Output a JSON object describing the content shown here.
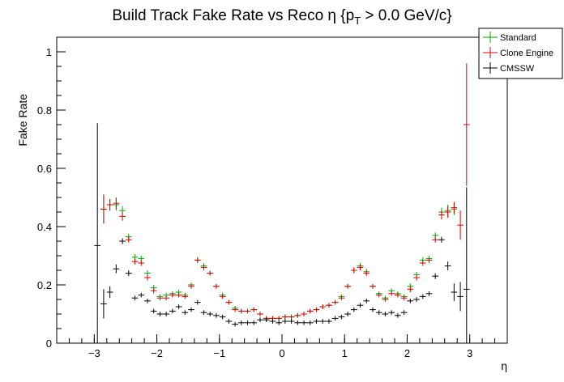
{
  "chart_data": {
    "type": "scatter",
    "title_main": "Build Track Fake Rate vs Reco η {p",
    "title_sub": "T",
    "title_tail": " > 0.0 GeV/c}",
    "xlabel": "η",
    "ylabel": "Fake Rate",
    "xlim": [
      -3.6,
      3.6
    ],
    "ylim": [
      0,
      1.05
    ],
    "x_ticks": [
      -3,
      -2,
      -1,
      0,
      1,
      2,
      3
    ],
    "x_tick_labels": [
      "−3",
      "−2",
      "−1",
      "0",
      "1",
      "2",
      "3"
    ],
    "y_ticks": [
      0,
      0.2,
      0.4,
      0.6,
      0.8,
      1
    ],
    "y_tick_labels": [
      "0",
      "0.2",
      "0.4",
      "0.6",
      "0.8",
      "1"
    ],
    "legend_position": "top-right",
    "series": [
      {
        "name": "Standard",
        "color": "#00aa00",
        "points": [
          {
            "x": -2.85,
            "y": 0.46,
            "e": 0.05
          },
          {
            "x": -2.75,
            "y": 0.475,
            "e": 0.02
          },
          {
            "x": -2.65,
            "y": 0.475,
            "e": 0.02
          },
          {
            "x": -2.55,
            "y": 0.455,
            "e": 0.015
          },
          {
            "x": -2.45,
            "y": 0.365,
            "e": 0.01
          },
          {
            "x": -2.35,
            "y": 0.295,
            "e": 0.01
          },
          {
            "x": -2.25,
            "y": 0.29,
            "e": 0.01
          },
          {
            "x": -2.15,
            "y": 0.24,
            "e": 0.01
          },
          {
            "x": -2.05,
            "y": 0.19,
            "e": 0.01
          },
          {
            "x": -1.95,
            "y": 0.16,
            "e": 0.008
          },
          {
            "x": -1.85,
            "y": 0.165,
            "e": 0.008
          },
          {
            "x": -1.75,
            "y": 0.17,
            "e": 0.008
          },
          {
            "x": -1.65,
            "y": 0.175,
            "e": 0.008
          },
          {
            "x": -1.55,
            "y": 0.165,
            "e": 0.008
          },
          {
            "x": -1.45,
            "y": 0.2,
            "e": 0.008
          },
          {
            "x": -1.35,
            "y": 0.285,
            "e": 0.01
          },
          {
            "x": -1.25,
            "y": 0.265,
            "e": 0.01
          },
          {
            "x": -1.15,
            "y": 0.24,
            "e": 0.008
          },
          {
            "x": -1.05,
            "y": 0.195,
            "e": 0.008
          },
          {
            "x": -0.95,
            "y": 0.165,
            "e": 0.008
          },
          {
            "x": -0.85,
            "y": 0.14,
            "e": 0.008
          },
          {
            "x": -0.75,
            "y": 0.12,
            "e": 0.008
          },
          {
            "x": -0.65,
            "y": 0.11,
            "e": 0.008
          },
          {
            "x": -0.55,
            "y": 0.11,
            "e": 0.008
          },
          {
            "x": -0.45,
            "y": 0.115,
            "e": 0.008
          },
          {
            "x": -0.35,
            "y": 0.1,
            "e": 0.008
          },
          {
            "x": -0.25,
            "y": 0.085,
            "e": 0.008
          },
          {
            "x": -0.15,
            "y": 0.085,
            "e": 0.008
          },
          {
            "x": -0.05,
            "y": 0.085,
            "e": 0.008
          },
          {
            "x": 0.05,
            "y": 0.09,
            "e": 0.008
          },
          {
            "x": 0.15,
            "y": 0.09,
            "e": 0.008
          },
          {
            "x": 0.25,
            "y": 0.095,
            "e": 0.008
          },
          {
            "x": 0.35,
            "y": 0.1,
            "e": 0.008
          },
          {
            "x": 0.45,
            "y": 0.11,
            "e": 0.008
          },
          {
            "x": 0.55,
            "y": 0.115,
            "e": 0.008
          },
          {
            "x": 0.65,
            "y": 0.125,
            "e": 0.008
          },
          {
            "x": 0.75,
            "y": 0.13,
            "e": 0.008
          },
          {
            "x": 0.85,
            "y": 0.14,
            "e": 0.008
          },
          {
            "x": 0.95,
            "y": 0.16,
            "e": 0.008
          },
          {
            "x": 1.05,
            "y": 0.195,
            "e": 0.008
          },
          {
            "x": 1.15,
            "y": 0.25,
            "e": 0.01
          },
          {
            "x": 1.25,
            "y": 0.265,
            "e": 0.01
          },
          {
            "x": 1.35,
            "y": 0.245,
            "e": 0.01
          },
          {
            "x": 1.45,
            "y": 0.195,
            "e": 0.008
          },
          {
            "x": 1.55,
            "y": 0.17,
            "e": 0.008
          },
          {
            "x": 1.65,
            "y": 0.155,
            "e": 0.008
          },
          {
            "x": 1.75,
            "y": 0.18,
            "e": 0.008
          },
          {
            "x": 1.85,
            "y": 0.17,
            "e": 0.008
          },
          {
            "x": 1.95,
            "y": 0.16,
            "e": 0.008
          },
          {
            "x": 2.05,
            "y": 0.195,
            "e": 0.01
          },
          {
            "x": 2.15,
            "y": 0.235,
            "e": 0.01
          },
          {
            "x": 2.25,
            "y": 0.285,
            "e": 0.01
          },
          {
            "x": 2.35,
            "y": 0.29,
            "e": 0.01
          },
          {
            "x": 2.45,
            "y": 0.37,
            "e": 0.01
          },
          {
            "x": 2.55,
            "y": 0.45,
            "e": 0.015
          },
          {
            "x": 2.65,
            "y": 0.455,
            "e": 0.02
          },
          {
            "x": 2.75,
            "y": 0.46,
            "e": 0.02
          }
        ]
      },
      {
        "name": "Clone Engine",
        "color": "#dd0000",
        "points": [
          {
            "x": -2.85,
            "y": 0.46,
            "e": 0.05
          },
          {
            "x": -2.75,
            "y": 0.475,
            "e": 0.02
          },
          {
            "x": -2.65,
            "y": 0.48,
            "e": 0.02
          },
          {
            "x": -2.55,
            "y": 0.435,
            "e": 0.015
          },
          {
            "x": -2.45,
            "y": 0.355,
            "e": 0.01
          },
          {
            "x": -2.35,
            "y": 0.28,
            "e": 0.01
          },
          {
            "x": -2.25,
            "y": 0.275,
            "e": 0.01
          },
          {
            "x": -2.15,
            "y": 0.225,
            "e": 0.01
          },
          {
            "x": -2.05,
            "y": 0.18,
            "e": 0.01
          },
          {
            "x": -1.95,
            "y": 0.155,
            "e": 0.008
          },
          {
            "x": -1.85,
            "y": 0.155,
            "e": 0.008
          },
          {
            "x": -1.75,
            "y": 0.165,
            "e": 0.008
          },
          {
            "x": -1.65,
            "y": 0.165,
            "e": 0.008
          },
          {
            "x": -1.55,
            "y": 0.16,
            "e": 0.008
          },
          {
            "x": -1.45,
            "y": 0.195,
            "e": 0.008
          },
          {
            "x": -1.35,
            "y": 0.285,
            "e": 0.01
          },
          {
            "x": -1.25,
            "y": 0.26,
            "e": 0.01
          },
          {
            "x": -1.15,
            "y": 0.24,
            "e": 0.008
          },
          {
            "x": -1.05,
            "y": 0.195,
            "e": 0.008
          },
          {
            "x": -0.95,
            "y": 0.16,
            "e": 0.008
          },
          {
            "x": -0.85,
            "y": 0.14,
            "e": 0.008
          },
          {
            "x": -0.75,
            "y": 0.115,
            "e": 0.008
          },
          {
            "x": -0.65,
            "y": 0.11,
            "e": 0.008
          },
          {
            "x": -0.55,
            "y": 0.11,
            "e": 0.008
          },
          {
            "x": -0.45,
            "y": 0.115,
            "e": 0.008
          },
          {
            "x": -0.35,
            "y": 0.1,
            "e": 0.008
          },
          {
            "x": -0.25,
            "y": 0.085,
            "e": 0.008
          },
          {
            "x": -0.15,
            "y": 0.085,
            "e": 0.008
          },
          {
            "x": -0.05,
            "y": 0.085,
            "e": 0.008
          },
          {
            "x": 0.05,
            "y": 0.09,
            "e": 0.008
          },
          {
            "x": 0.15,
            "y": 0.09,
            "e": 0.008
          },
          {
            "x": 0.25,
            "y": 0.095,
            "e": 0.008
          },
          {
            "x": 0.35,
            "y": 0.1,
            "e": 0.008
          },
          {
            "x": 0.45,
            "y": 0.11,
            "e": 0.008
          },
          {
            "x": 0.55,
            "y": 0.115,
            "e": 0.008
          },
          {
            "x": 0.65,
            "y": 0.125,
            "e": 0.008
          },
          {
            "x": 0.75,
            "y": 0.13,
            "e": 0.008
          },
          {
            "x": 0.85,
            "y": 0.14,
            "e": 0.008
          },
          {
            "x": 0.95,
            "y": 0.155,
            "e": 0.008
          },
          {
            "x": 1.05,
            "y": 0.195,
            "e": 0.008
          },
          {
            "x": 1.15,
            "y": 0.25,
            "e": 0.01
          },
          {
            "x": 1.25,
            "y": 0.26,
            "e": 0.01
          },
          {
            "x": 1.35,
            "y": 0.24,
            "e": 0.01
          },
          {
            "x": 1.45,
            "y": 0.195,
            "e": 0.008
          },
          {
            "x": 1.55,
            "y": 0.165,
            "e": 0.008
          },
          {
            "x": 1.65,
            "y": 0.15,
            "e": 0.008
          },
          {
            "x": 1.75,
            "y": 0.17,
            "e": 0.008
          },
          {
            "x": 1.85,
            "y": 0.165,
            "e": 0.008
          },
          {
            "x": 1.95,
            "y": 0.155,
            "e": 0.008
          },
          {
            "x": 2.05,
            "y": 0.185,
            "e": 0.01
          },
          {
            "x": 2.15,
            "y": 0.225,
            "e": 0.01
          },
          {
            "x": 2.25,
            "y": 0.275,
            "e": 0.01
          },
          {
            "x": 2.35,
            "y": 0.285,
            "e": 0.01
          },
          {
            "x": 2.45,
            "y": 0.355,
            "e": 0.01
          },
          {
            "x": 2.55,
            "y": 0.44,
            "e": 0.015
          },
          {
            "x": 2.65,
            "y": 0.45,
            "e": 0.02
          },
          {
            "x": 2.75,
            "y": 0.465,
            "e": 0.02
          },
          {
            "x": 2.85,
            "y": 0.405,
            "e": 0.05
          },
          {
            "x": 2.95,
            "y": 0.75,
            "e": 0.21
          }
        ]
      },
      {
        "name": "CMSSW",
        "color": "#000000",
        "points": [
          {
            "x": -2.95,
            "y": 0.335,
            "e": 0.42
          },
          {
            "x": -2.85,
            "y": 0.135,
            "e": 0.05
          },
          {
            "x": -2.75,
            "y": 0.175,
            "e": 0.02
          },
          {
            "x": -2.65,
            "y": 0.255,
            "e": 0.015
          },
          {
            "x": -2.55,
            "y": 0.35,
            "e": 0.01
          },
          {
            "x": -2.45,
            "y": 0.24,
            "e": 0.01
          },
          {
            "x": -2.35,
            "y": 0.155,
            "e": 0.008
          },
          {
            "x": -2.25,
            "y": 0.165,
            "e": 0.008
          },
          {
            "x": -2.15,
            "y": 0.145,
            "e": 0.008
          },
          {
            "x": -2.05,
            "y": 0.11,
            "e": 0.008
          },
          {
            "x": -1.95,
            "y": 0.1,
            "e": 0.008
          },
          {
            "x": -1.85,
            "y": 0.1,
            "e": 0.008
          },
          {
            "x": -1.75,
            "y": 0.11,
            "e": 0.008
          },
          {
            "x": -1.65,
            "y": 0.125,
            "e": 0.008
          },
          {
            "x": -1.55,
            "y": 0.105,
            "e": 0.008
          },
          {
            "x": -1.45,
            "y": 0.115,
            "e": 0.008
          },
          {
            "x": -1.35,
            "y": 0.14,
            "e": 0.008
          },
          {
            "x": -1.25,
            "y": 0.105,
            "e": 0.008
          },
          {
            "x": -1.15,
            "y": 0.1,
            "e": 0.008
          },
          {
            "x": -1.05,
            "y": 0.095,
            "e": 0.008
          },
          {
            "x": -0.95,
            "y": 0.09,
            "e": 0.008
          },
          {
            "x": -0.85,
            "y": 0.075,
            "e": 0.008
          },
          {
            "x": -0.75,
            "y": 0.065,
            "e": 0.008
          },
          {
            "x": -0.65,
            "y": 0.07,
            "e": 0.008
          },
          {
            "x": -0.55,
            "y": 0.07,
            "e": 0.008
          },
          {
            "x": -0.45,
            "y": 0.07,
            "e": 0.008
          },
          {
            "x": -0.35,
            "y": 0.08,
            "e": 0.008
          },
          {
            "x": -0.25,
            "y": 0.08,
            "e": 0.008
          },
          {
            "x": -0.15,
            "y": 0.075,
            "e": 0.008
          },
          {
            "x": -0.05,
            "y": 0.07,
            "e": 0.008
          },
          {
            "x": 0.05,
            "y": 0.075,
            "e": 0.008
          },
          {
            "x": 0.15,
            "y": 0.075,
            "e": 0.008
          },
          {
            "x": 0.25,
            "y": 0.07,
            "e": 0.008
          },
          {
            "x": 0.35,
            "y": 0.07,
            "e": 0.008
          },
          {
            "x": 0.45,
            "y": 0.07,
            "e": 0.008
          },
          {
            "x": 0.55,
            "y": 0.075,
            "e": 0.008
          },
          {
            "x": 0.65,
            "y": 0.075,
            "e": 0.008
          },
          {
            "x": 0.75,
            "y": 0.075,
            "e": 0.008
          },
          {
            "x": 0.85,
            "y": 0.085,
            "e": 0.008
          },
          {
            "x": 0.95,
            "y": 0.09,
            "e": 0.008
          },
          {
            "x": 1.05,
            "y": 0.1,
            "e": 0.008
          },
          {
            "x": 1.15,
            "y": 0.115,
            "e": 0.008
          },
          {
            "x": 1.25,
            "y": 0.13,
            "e": 0.008
          },
          {
            "x": 1.35,
            "y": 0.145,
            "e": 0.008
          },
          {
            "x": 1.45,
            "y": 0.115,
            "e": 0.008
          },
          {
            "x": 1.55,
            "y": 0.105,
            "e": 0.008
          },
          {
            "x": 1.65,
            "y": 0.1,
            "e": 0.008
          },
          {
            "x": 1.75,
            "y": 0.105,
            "e": 0.008
          },
          {
            "x": 1.85,
            "y": 0.095,
            "e": 0.008
          },
          {
            "x": 1.95,
            "y": 0.105,
            "e": 0.008
          },
          {
            "x": 2.05,
            "y": 0.145,
            "e": 0.008
          },
          {
            "x": 2.15,
            "y": 0.15,
            "e": 0.008
          },
          {
            "x": 2.25,
            "y": 0.16,
            "e": 0.008
          },
          {
            "x": 2.35,
            "y": 0.17,
            "e": 0.008
          },
          {
            "x": 2.45,
            "y": 0.23,
            "e": 0.01
          },
          {
            "x": 2.55,
            "y": 0.355,
            "e": 0.01
          },
          {
            "x": 2.65,
            "y": 0.265,
            "e": 0.015
          },
          {
            "x": 2.75,
            "y": 0.175,
            "e": 0.03
          },
          {
            "x": 2.85,
            "y": 0.16,
            "e": 0.05
          },
          {
            "x": 2.95,
            "y": 0.185,
            "e": 0.35
          }
        ]
      }
    ]
  }
}
